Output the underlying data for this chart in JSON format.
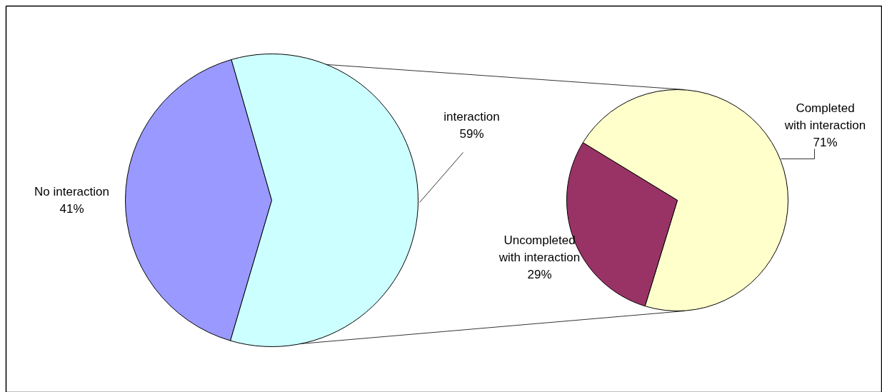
{
  "chart_data": [
    {
      "type": "pie",
      "categories": [
        "No interaction",
        "interaction"
      ],
      "values": [
        41,
        59
      ],
      "colors": [
        "#9999ff",
        "#ccffff"
      ],
      "value_labels": [
        "41%",
        "59%"
      ]
    },
    {
      "type": "pie",
      "categories": [
        "Completed with interaction",
        "Uncompleted with interaction"
      ],
      "values": [
        71,
        29
      ],
      "colors": [
        "#ffffcc",
        "#993366"
      ],
      "value_labels": [
        "71%",
        "29%"
      ]
    }
  ]
}
